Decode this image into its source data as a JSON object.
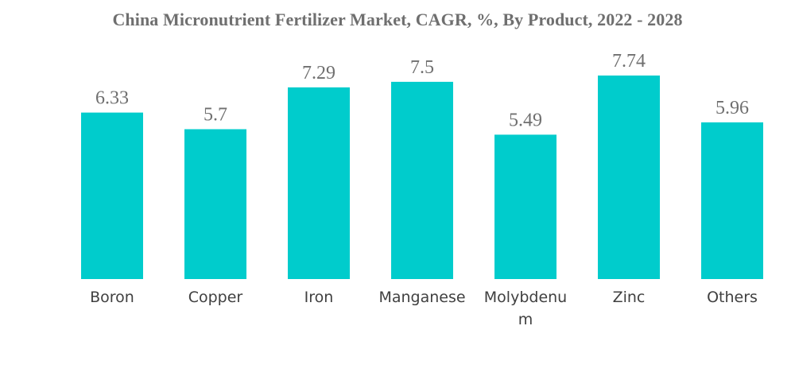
{
  "chart_data": {
    "type": "bar",
    "title": "China Micronutrient Fertilizer Market, CAGR, %, By Product, 2022 - 2028",
    "categories": [
      "Boron",
      "Copper",
      "Iron",
      "Manganese",
      "Molybdenum",
      "Zinc",
      "Others"
    ],
    "category_display": [
      [
        "Boron"
      ],
      [
        "Copper"
      ],
      [
        "Iron"
      ],
      [
        "Manganese"
      ],
      [
        "Molybdenu",
        "m"
      ],
      [
        "Zinc"
      ],
      [
        "Others"
      ]
    ],
    "values": [
      6.33,
      5.7,
      7.29,
      7.5,
      5.49,
      7.74,
      5.96
    ],
    "value_labels": [
      "6.33",
      "5.7",
      "7.29",
      "7.5",
      "5.49",
      "7.74",
      "5.96"
    ],
    "xlabel": "",
    "ylabel": "",
    "ylim": [
      0,
      7.74
    ],
    "grid": false,
    "legend": "none",
    "bar_color": "#00CCCC"
  }
}
